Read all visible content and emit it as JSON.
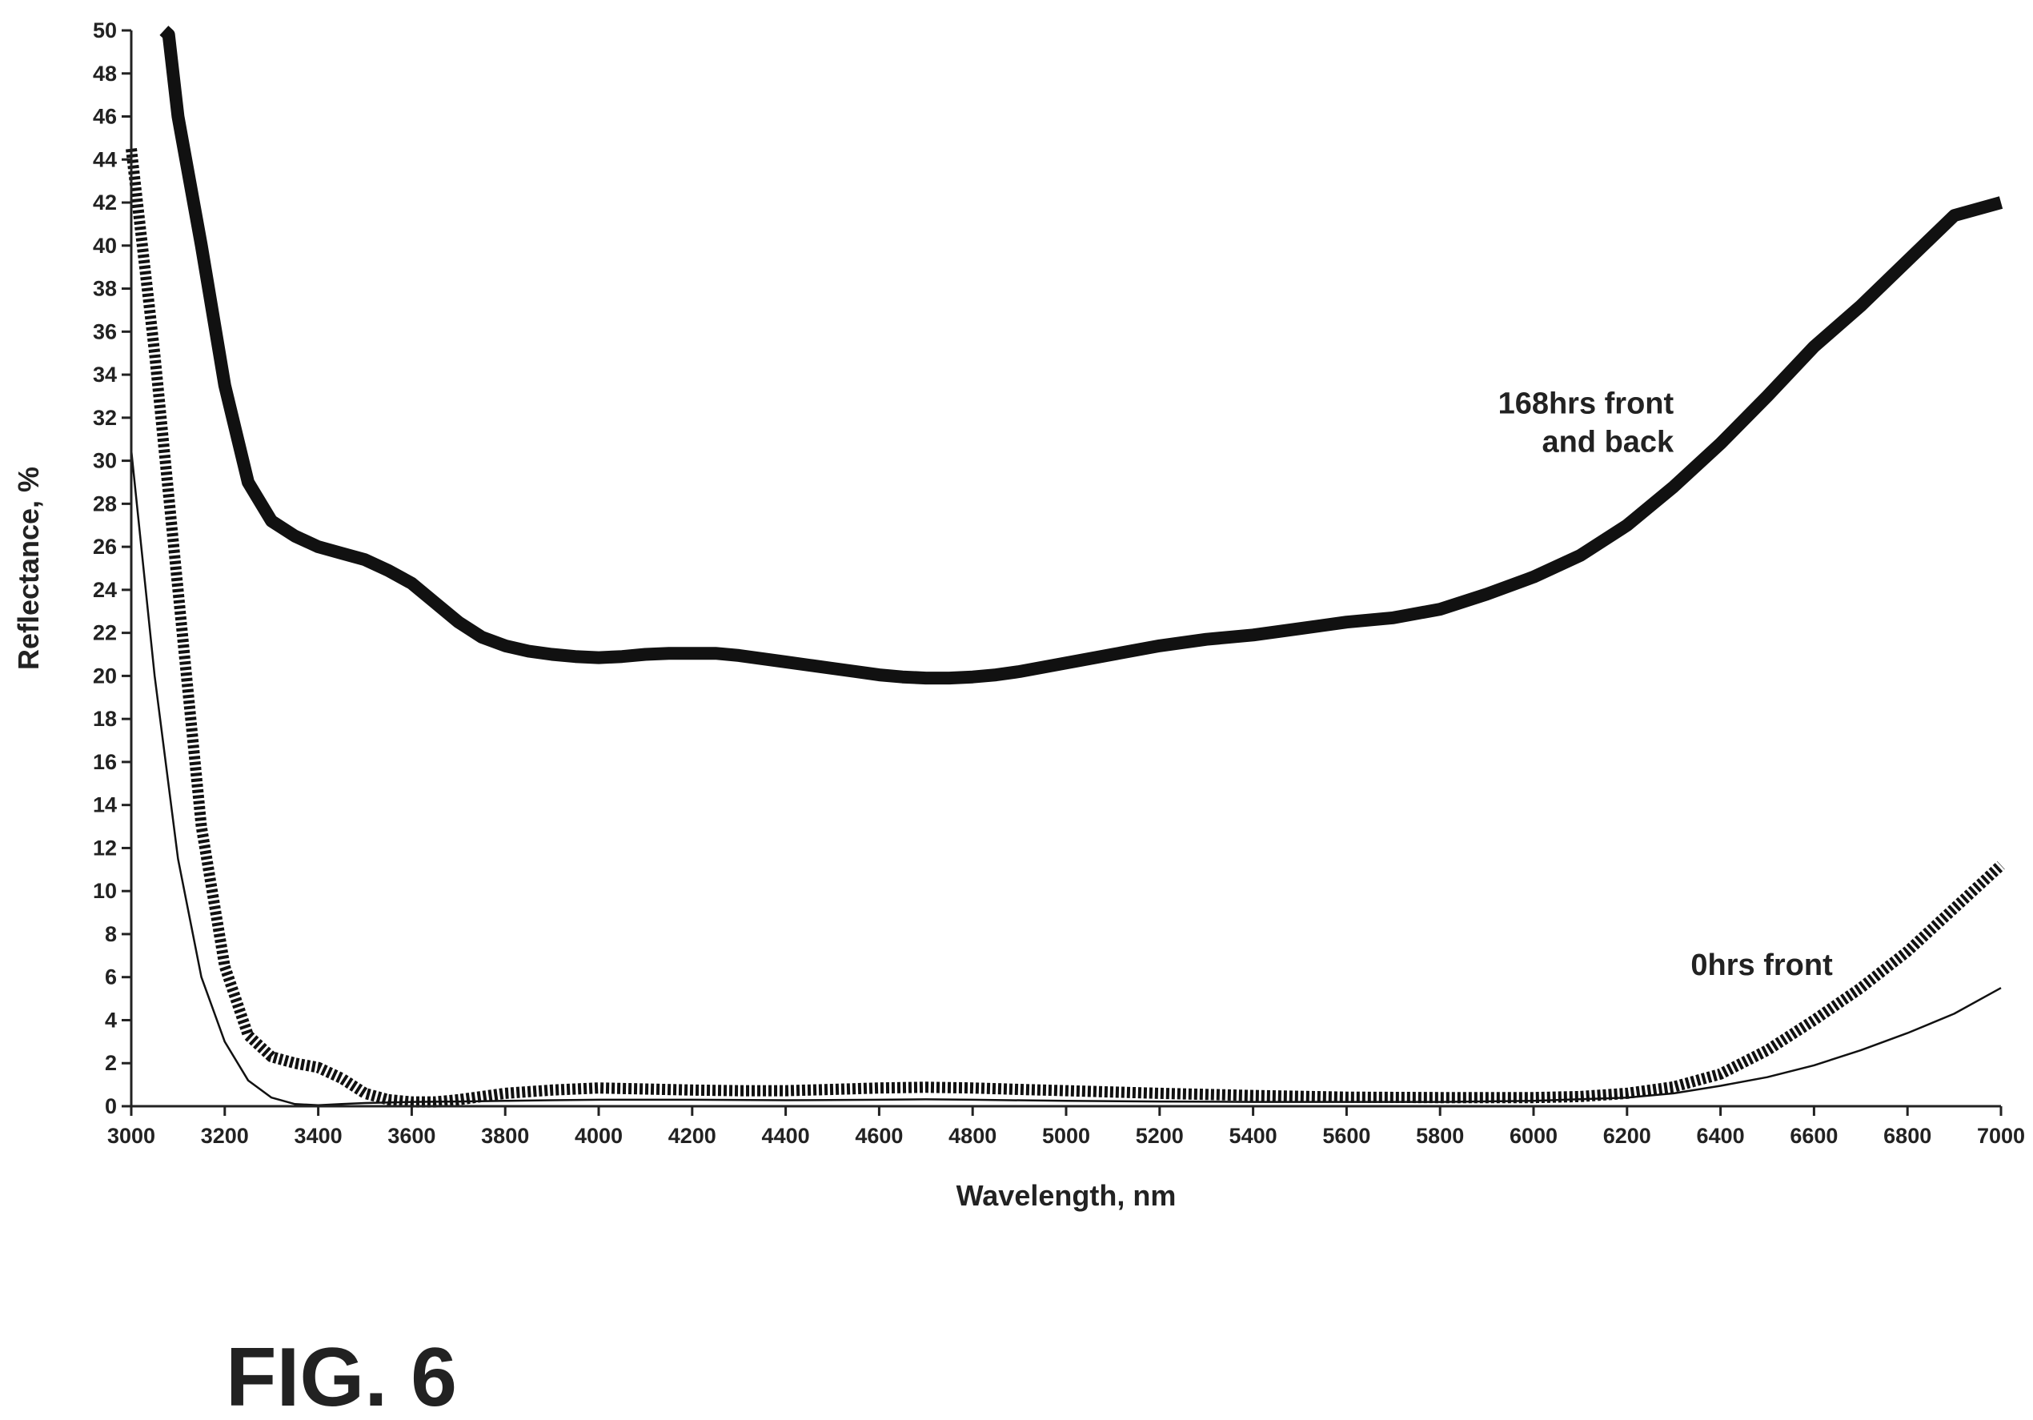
{
  "figure_label": "FIG. 6",
  "chart_data": {
    "type": "line",
    "title": "",
    "xlabel": "Wavelength, nm",
    "ylabel": "Reflectance, %",
    "xlim": [
      3000,
      7000
    ],
    "ylim": [
      0,
      50
    ],
    "x_ticks": [
      3000,
      3200,
      3400,
      3600,
      3800,
      4000,
      4200,
      4400,
      4600,
      4800,
      5000,
      5200,
      5400,
      5600,
      5800,
      6000,
      6200,
      6400,
      6600,
      6800,
      7000
    ],
    "y_ticks": [
      0,
      2,
      4,
      6,
      8,
      10,
      12,
      14,
      16,
      18,
      20,
      22,
      24,
      26,
      28,
      30,
      32,
      34,
      36,
      38,
      40,
      42,
      44,
      46,
      48,
      50
    ],
    "grid": false,
    "annotations": [
      {
        "lines": [
          "168hrs front",
          "and back"
        ],
        "x": 6300,
        "y": 32.2,
        "align": "end"
      },
      {
        "lines": [
          "0hrs front"
        ],
        "x": 6640,
        "y": 6.1,
        "align": "end"
      }
    ],
    "series": [
      {
        "style": "thick",
        "color": "#111111",
        "x": [
          3070,
          3080,
          3100,
          3150,
          3200,
          3250,
          3300,
          3350,
          3400,
          3450,
          3500,
          3550,
          3600,
          3650,
          3700,
          3750,
          3800,
          3850,
          3900,
          3950,
          4000,
          4050,
          4100,
          4150,
          4200,
          4250,
          4300,
          4350,
          4400,
          4450,
          4500,
          4550,
          4600,
          4650,
          4700,
          4750,
          4800,
          4850,
          4900,
          4950,
          5000,
          5100,
          5200,
          5300,
          5400,
          5500,
          5600,
          5700,
          5800,
          5900,
          6000,
          6100,
          6200,
          6300,
          6400,
          6500,
          6600,
          6700,
          6800,
          6900,
          7000
        ],
        "y": [
          50,
          49.8,
          46.0,
          40.0,
          33.5,
          29.0,
          27.2,
          26.5,
          26.0,
          25.7,
          25.4,
          24.9,
          24.3,
          23.4,
          22.5,
          21.8,
          21.4,
          21.15,
          21.0,
          20.9,
          20.85,
          20.9,
          21.0,
          21.05,
          21.05,
          21.05,
          20.95,
          20.8,
          20.65,
          20.5,
          20.35,
          20.2,
          20.05,
          19.95,
          19.9,
          19.9,
          19.95,
          20.05,
          20.2,
          20.4,
          20.6,
          21.0,
          21.4,
          21.7,
          21.9,
          22.2,
          22.5,
          22.7,
          23.1,
          23.8,
          24.6,
          25.6,
          27.0,
          28.8,
          30.8,
          33.0,
          35.3,
          37.2,
          39.3,
          41.4,
          42.0
        ]
      },
      {
        "style": "dashed",
        "color": "#111111",
        "x": [
          3000,
          3050,
          3100,
          3150,
          3200,
          3250,
          3300,
          3350,
          3400,
          3450,
          3500,
          3550,
          3600,
          3650,
          3700,
          3750,
          3800,
          3900,
          4000,
          4100,
          4200,
          4300,
          4400,
          4500,
          4600,
          4700,
          4800,
          4900,
          5000,
          5200,
          5400,
          5600,
          5800,
          6000,
          6100,
          6200,
          6300,
          6400,
          6500,
          6600,
          6700,
          6800,
          6900,
          7000
        ],
        "y": [
          44.5,
          35.0,
          24.0,
          13.0,
          6.5,
          3.3,
          2.3,
          2.0,
          1.8,
          1.3,
          0.6,
          0.3,
          0.2,
          0.2,
          0.3,
          0.45,
          0.6,
          0.75,
          0.85,
          0.8,
          0.75,
          0.72,
          0.72,
          0.78,
          0.85,
          0.88,
          0.85,
          0.78,
          0.72,
          0.6,
          0.5,
          0.42,
          0.4,
          0.4,
          0.45,
          0.6,
          0.9,
          1.5,
          2.6,
          4.0,
          5.5,
          7.2,
          9.2,
          11.2
        ]
      },
      {
        "style": "thin",
        "color": "#111111",
        "x": [
          3000,
          3050,
          3100,
          3150,
          3200,
          3250,
          3300,
          3350,
          3400,
          3450,
          3500,
          3600,
          3700,
          3800,
          3900,
          4000,
          4200,
          4400,
          4600,
          4700,
          4800,
          5000,
          5200,
          5400,
          5600,
          5800,
          6000,
          6200,
          6300,
          6400,
          6500,
          6600,
          6700,
          6800,
          6900,
          7000
        ],
        "y": [
          30.5,
          20.0,
          11.5,
          6.0,
          3.0,
          1.2,
          0.4,
          0.1,
          0.05,
          0.1,
          0.15,
          0.2,
          0.22,
          0.25,
          0.28,
          0.3,
          0.3,
          0.28,
          0.3,
          0.32,
          0.3,
          0.25,
          0.22,
          0.2,
          0.2,
          0.2,
          0.25,
          0.4,
          0.6,
          0.95,
          1.35,
          1.9,
          2.6,
          3.4,
          4.3,
          5.5
        ]
      }
    ]
  }
}
